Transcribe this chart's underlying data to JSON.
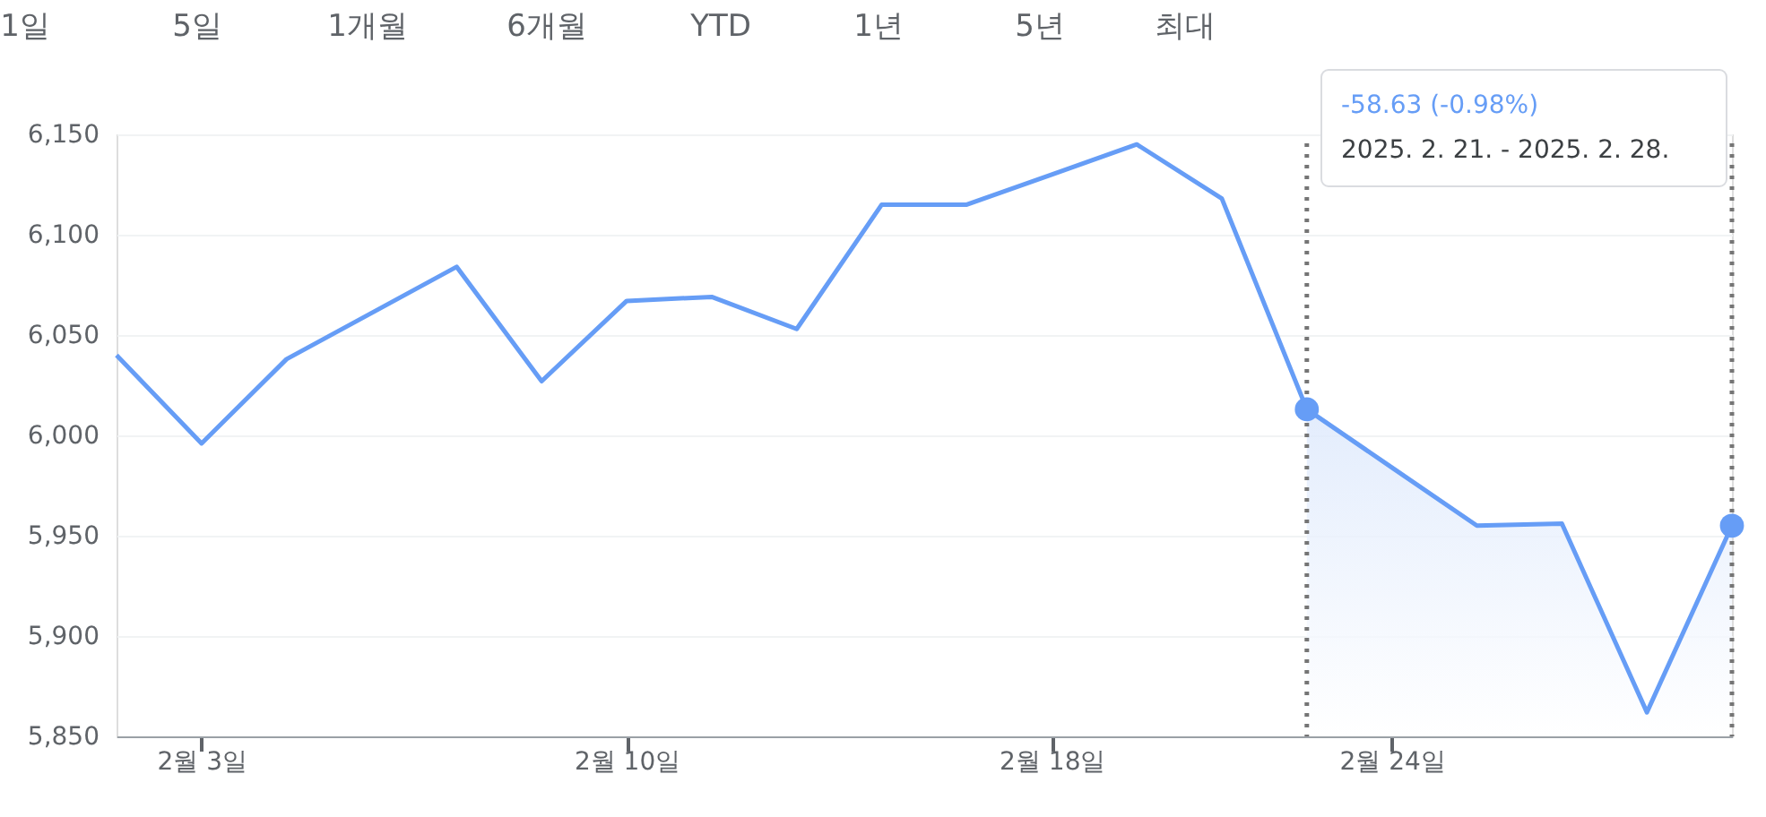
{
  "chart_data": {
    "type": "line",
    "categories": [
      null,
      "2월 3일",
      null,
      null,
      null,
      null,
      "2월 10일",
      null,
      null,
      null,
      null,
      "2월 18일",
      null,
      null,
      null,
      "2월 24일",
      null,
      null,
      null,
      null
    ],
    "series": [
      {
        "color": "#669df6",
        "values": [
          6040,
          5996,
          6038,
          6061,
          6084,
          6027,
          6067,
          6069,
          6053,
          6115,
          6115,
          6130,
          6145,
          6118,
          6013,
          5984,
          5955,
          5956,
          5862,
          5955
        ]
      },
      {
        "type": "area",
        "color": "#dce8fc",
        "values": [
          null,
          null,
          null,
          null,
          null,
          null,
          null,
          null,
          null,
          null,
          null,
          null,
          null,
          null,
          6013,
          5984,
          5955,
          5956,
          5862,
          5955
        ]
      },
      {
        "type": "scatter",
        "color": "#669df6",
        "marker": "circle",
        "line_style": "dotted",
        "values": [
          null,
          null,
          null,
          null,
          null,
          null,
          null,
          null,
          null,
          null,
          null,
          null,
          null,
          null,
          6013,
          null,
          null,
          null,
          null,
          5955
        ]
      }
    ],
    "ylim": [
      5850,
      6150
    ],
    "yticks": [
      {
        "value": 5850,
        "label": "5,850"
      },
      {
        "value": 5900,
        "label": "5,900"
      },
      {
        "value": 5950,
        "label": "5,950"
      },
      {
        "value": 6000,
        "label": "6,000"
      },
      {
        "value": 6050,
        "label": "6,050"
      },
      {
        "value": 6100,
        "label": "6,100"
      },
      {
        "value": 6150,
        "label": "6,150"
      }
    ],
    "grid": "y",
    "annotations": [
      "1일",
      "5일",
      "1개월",
      "6개월",
      "YTD",
      "1년",
      "5년",
      "최대",
      "-58.63 (-0.98%)",
      "2025. 2. 21. - 2025. 2. 28."
    ]
  }
}
